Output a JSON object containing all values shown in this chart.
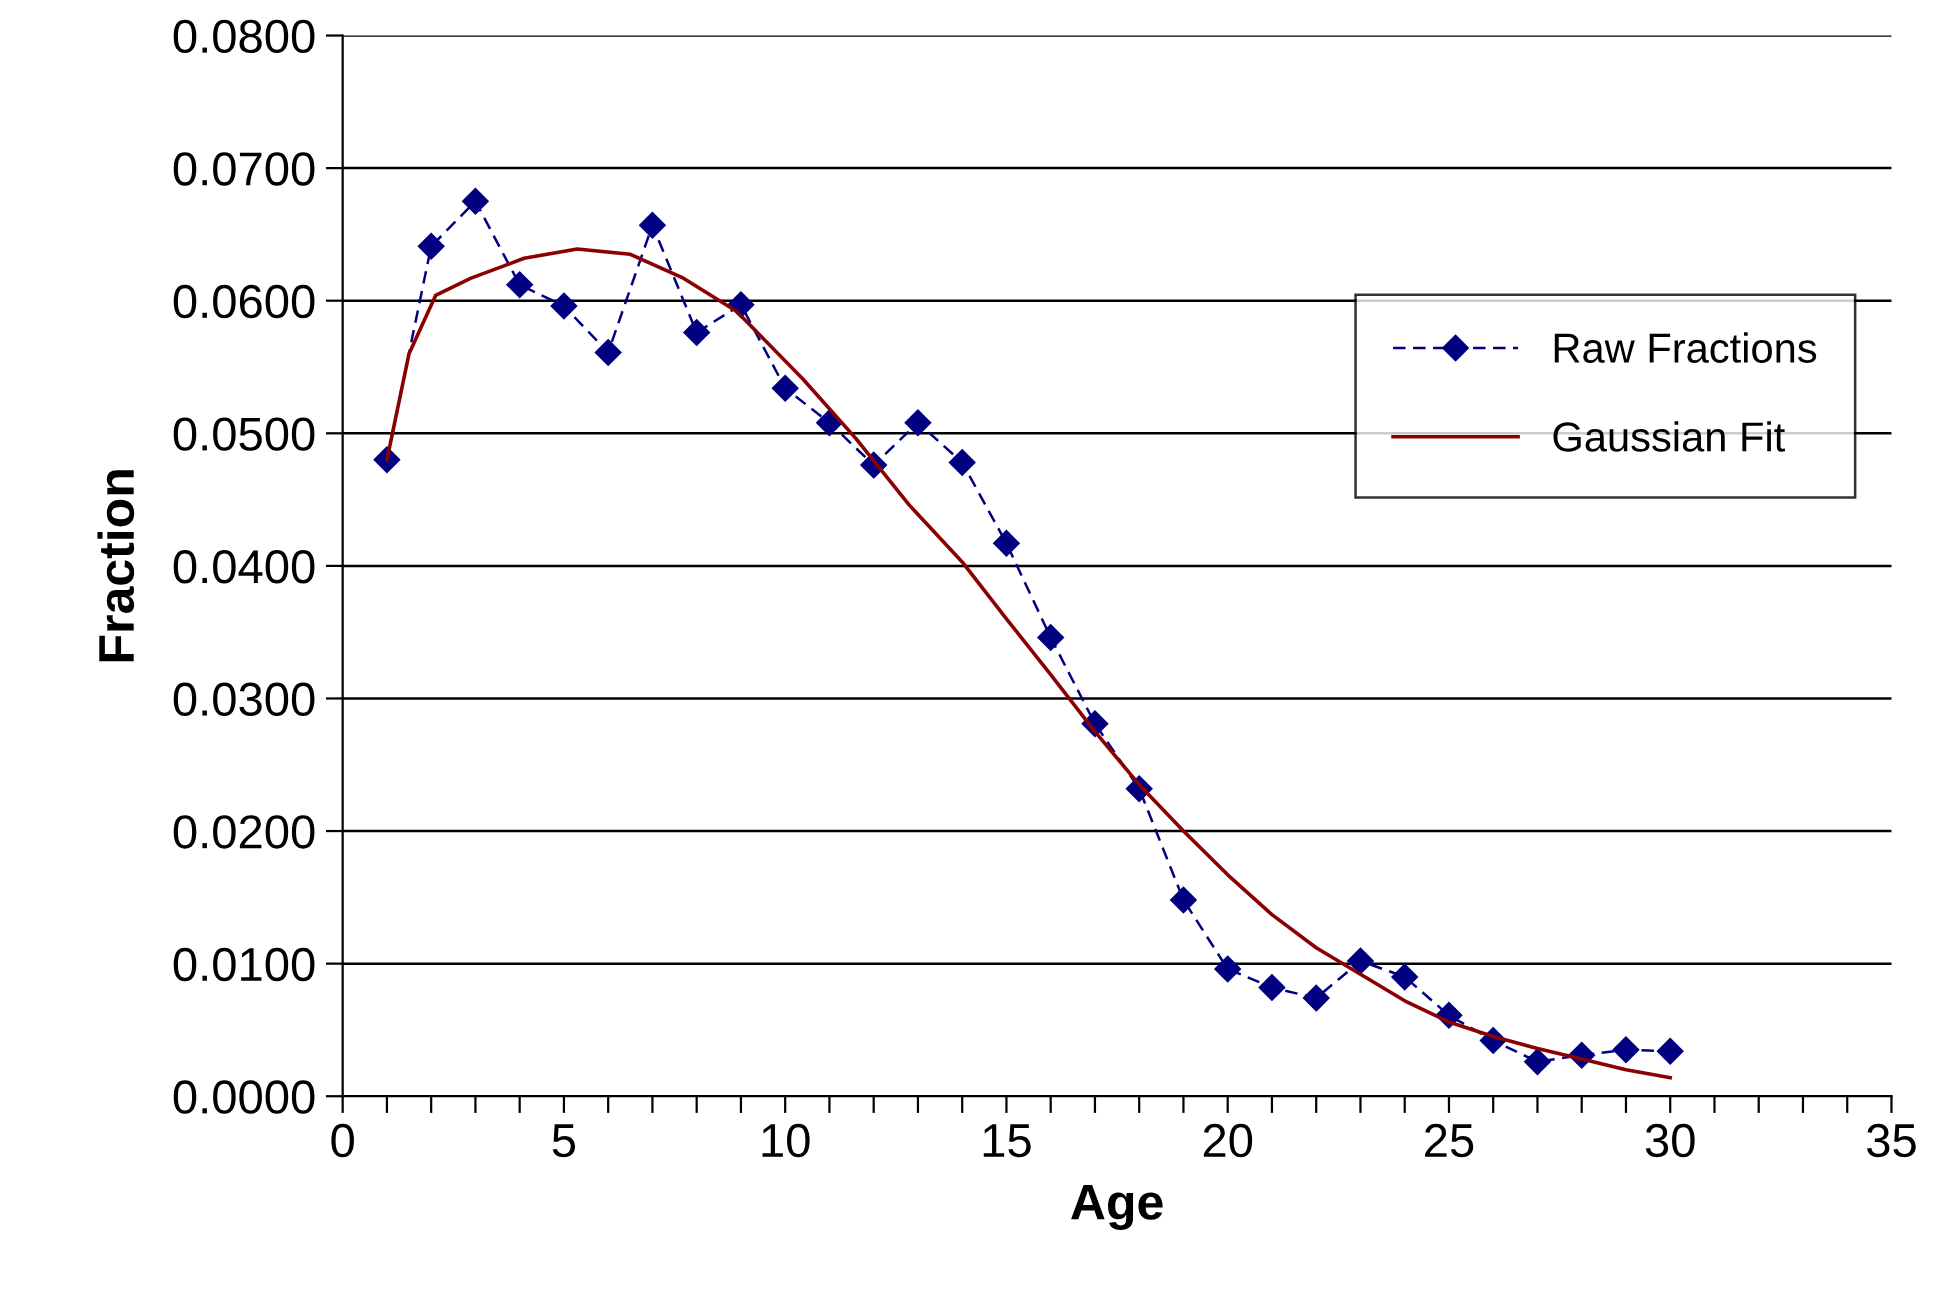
{
  "chart_data": {
    "type": "line",
    "xlabel": "Age",
    "ylabel": "Fraction",
    "xlim": [
      0,
      35
    ],
    "ylim": [
      0,
      0.08
    ],
    "xticks": [
      0,
      {
        "value": 1,
        "label": null
      },
      {
        "value": 2,
        "label": null
      },
      {
        "value": 3,
        "label": null
      },
      {
        "value": 4,
        "label": null
      },
      5,
      {
        "value": 6,
        "label": null
      },
      {
        "value": 7,
        "label": null
      },
      {
        "value": 8,
        "label": null
      },
      {
        "value": 9,
        "label": null
      },
      10,
      {
        "value": 11,
        "label": null
      },
      {
        "value": 12,
        "label": null
      },
      {
        "value": 13,
        "label": null
      },
      {
        "value": 14,
        "label": null
      },
      15,
      {
        "value": 16,
        "label": null
      },
      {
        "value": 17,
        "label": null
      },
      {
        "value": 18,
        "label": null
      },
      {
        "value": 19,
        "label": null
      },
      20,
      {
        "value": 21,
        "label": null
      },
      {
        "value": 22,
        "label": null
      },
      {
        "value": 23,
        "label": null
      },
      {
        "value": 24,
        "label": null
      },
      25,
      {
        "value": 26,
        "label": null
      },
      {
        "value": 27,
        "label": null
      },
      {
        "value": 28,
        "label": null
      },
      {
        "value": 29,
        "label": null
      },
      30,
      {
        "value": 31,
        "label": null
      },
      {
        "value": 32,
        "label": null
      },
      {
        "value": 33,
        "label": null
      },
      {
        "value": 34,
        "label": null
      },
      35
    ],
    "yticks": [
      {
        "value": 0,
        "label": "0.0000"
      },
      {
        "value": 0.01,
        "label": "0.0100"
      },
      {
        "value": 0.02,
        "label": "0.0200"
      },
      {
        "value": 0.03,
        "label": "0.0300"
      },
      {
        "value": 0.04,
        "label": "0.0400"
      },
      {
        "value": 0.05,
        "label": "0.0500"
      },
      {
        "value": 0.06,
        "label": "0.0600"
      },
      {
        "value": 0.07,
        "label": "0.0700"
      },
      {
        "value": 0.08,
        "label": "0.0800"
      }
    ],
    "grid": "y",
    "legend": "right",
    "series": [
      {
        "name": "Raw Fractions",
        "color": "#000080",
        "marker": "diamond",
        "line_style": "dashed",
        "x": [
          1,
          2,
          3,
          4,
          5,
          6,
          7,
          8,
          9,
          10,
          11,
          12,
          13,
          14,
          15,
          16,
          17,
          18,
          19,
          20,
          21,
          22,
          23,
          24,
          25,
          26,
          27,
          28,
          29,
          30
        ],
        "values": [
          0.048,
          0.0641,
          0.0675,
          0.0612,
          0.0596,
          0.0561,
          0.0657,
          0.0576,
          0.0597,
          0.0534,
          0.0508,
          0.0476,
          0.0508,
          0.0478,
          0.0417,
          0.0346,
          0.0281,
          0.0232,
          0.0148,
          0.0096,
          0.0082,
          0.0074,
          0.0102,
          0.009,
          0.0061,
          0.0042,
          0.0026,
          0.0031,
          0.0035,
          0.0034
        ]
      },
      {
        "name": "Gaussian Fit",
        "color": "#8b0000",
        "marker": "none",
        "line_style": "solid",
        "x": [
          1,
          1.5,
          2.1,
          2.9,
          4.1,
          5.3,
          6.5,
          7.7,
          8.9,
          10.4,
          11.6,
          12.8,
          14,
          15,
          16,
          17,
          18,
          19,
          20,
          21,
          22,
          23,
          24,
          25,
          26,
          27,
          28,
          29,
          30
        ],
        "values": [
          0.048,
          0.056,
          0.0604,
          0.0617,
          0.0632,
          0.0639,
          0.0635,
          0.0617,
          0.0592,
          0.0541,
          0.0496,
          0.0446,
          0.0403,
          0.036,
          0.0318,
          0.0275,
          0.0235,
          0.02,
          0.0167,
          0.0137,
          0.0112,
          0.0092,
          0.0072,
          0.0056,
          0.0045,
          0.0036,
          0.0028,
          0.002,
          0.0014
        ]
      }
    ]
  }
}
